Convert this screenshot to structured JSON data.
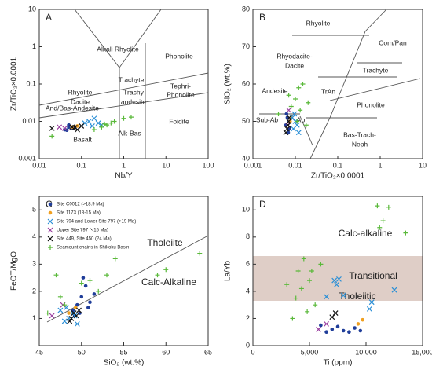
{
  "chart_data": [
    {
      "type": "scatter",
      "panel": "A",
      "xlabel": "Nb/Y",
      "ylabel": "Zr/TiO₂×0.0001",
      "xlog": true,
      "ylog": true,
      "xlim": [
        0.01,
        100
      ],
      "ylim": [
        0.001,
        10
      ],
      "xticks": [
        0.01,
        0.1,
        1,
        10,
        100
      ],
      "yticks": [
        0.001,
        0.01,
        0.1,
        1,
        10
      ],
      "labels": [
        "Alkali Rhyolite",
        "Phonolite",
        "Rhyolite",
        "Dacite",
        "Trachyte",
        "Tephri-",
        "Phonolite",
        "Trachy",
        "andesite",
        "And/Bas-Andesite",
        "Foidite",
        "Alk-Bas",
        "Basalt"
      ],
      "series": [
        {
          "color": "#1f3d99",
          "marker": "circle",
          "x": [
            0.04,
            0.05,
            0.06,
            0.05,
            0.07,
            0.045
          ],
          "y": [
            0.006,
            0.007,
            0.0065,
            0.008,
            0.007,
            0.0058
          ]
        },
        {
          "color": "#f0a020",
          "marker": "circle",
          "x": [
            0.06,
            0.08
          ],
          "y": [
            0.007,
            0.0075
          ]
        },
        {
          "color": "#2b8fd6",
          "marker": "x",
          "x": [
            0.15,
            0.2,
            0.25,
            0.3,
            0.18,
            0.12
          ],
          "y": [
            0.01,
            0.012,
            0.009,
            0.008,
            0.0075,
            0.009
          ]
        },
        {
          "color": "#9b3fa0",
          "marker": "x",
          "x": [
            0.03,
            0.04
          ],
          "y": [
            0.007,
            0.0065
          ]
        },
        {
          "color": "#111111",
          "marker": "x",
          "x": [
            0.02,
            0.06,
            0.08,
            0.1,
            0.07
          ],
          "y": [
            0.0065,
            0.007,
            0.006,
            0.0075,
            0.0068
          ]
        },
        {
          "color": "#5ab93a",
          "marker": "plus",
          "x": [
            0.02,
            0.3,
            0.4,
            0.5,
            0.6,
            1,
            1.5,
            0.2,
            0.35
          ],
          "y": [
            0.004,
            0.007,
            0.008,
            0.009,
            0.01,
            0.012,
            0.013,
            0.006,
            0.0085
          ]
        }
      ]
    },
    {
      "type": "scatter",
      "panel": "B",
      "xlabel": "Zr/TiO₂×0.0001",
      "ylabel": "SiO₂ (wt.%)",
      "xlog": true,
      "xlim": [
        0.001,
        10
      ],
      "ylim": [
        40,
        80
      ],
      "xticks": [
        0.001,
        0.01,
        0.1,
        1,
        10
      ],
      "yticks": [
        40,
        50,
        60,
        70,
        80
      ],
      "labels": [
        "Rhyolite",
        "Com/Pan",
        "Rhyodacite-",
        "Dacite",
        "Trachyte",
        "Andesite",
        "TrAn",
        "Phonolite",
        "Sub-Ab",
        "Ab",
        "Bas-Trach-",
        "Neph"
      ],
      "series": [
        {
          "color": "#1f3d99",
          "marker": "circle",
          "x": [
            0.006,
            0.007,
            0.0065,
            0.0072,
            0.0068,
            0.0062
          ],
          "y": [
            49,
            50,
            51,
            48,
            47,
            52
          ]
        },
        {
          "color": "#f0a020",
          "marker": "circle",
          "x": [
            0.0075,
            0.008
          ],
          "y": [
            50,
            51
          ]
        },
        {
          "color": "#2b8fd6",
          "marker": "x",
          "x": [
            0.009,
            0.011,
            0.01,
            0.012,
            0.0085,
            0.0095
          ],
          "y": [
            48,
            49,
            50,
            47,
            51,
            52
          ]
        },
        {
          "color": "#9b3fa0",
          "marker": "x",
          "x": [
            0.007,
            0.0066
          ],
          "y": [
            53,
            49
          ]
        },
        {
          "color": "#111111",
          "marker": "x",
          "x": [
            0.006,
            0.0064,
            0.0068,
            0.007,
            0.0072
          ],
          "y": [
            47,
            48,
            49,
            50,
            51
          ]
        },
        {
          "color": "#5ab93a",
          "marker": "plus",
          "x": [
            0.004,
            0.01,
            0.012,
            0.015,
            0.02,
            0.008,
            0.011,
            0.018,
            0.007,
            0.013
          ],
          "y": [
            52,
            56,
            59,
            60,
            55,
            54,
            50,
            49,
            57,
            53
          ]
        }
      ]
    },
    {
      "type": "scatter",
      "panel": "C",
      "xlabel": "SiO₂ (wt.%)",
      "ylabel": "FeOT/MgO",
      "xlim": [
        45,
        65
      ],
      "ylim": [
        0,
        5.5
      ],
      "xticks": [
        45,
        50,
        55,
        60,
        65
      ],
      "yticks": [
        1,
        2,
        3,
        4,
        5
      ],
      "labels": [
        "Tholeiite",
        "Calc-Alkaline"
      ],
      "legend": "upper left",
      "series": [
        {
          "name": "Site C0012 (>18.9 Ma)",
          "color": "#1f3d99",
          "marker": "circle",
          "x": [
            49,
            49.5,
            50,
            50.5,
            51,
            49.8,
            50.2,
            51.5,
            50.8,
            49.2
          ],
          "y": [
            1.3,
            1.5,
            1.8,
            2.2,
            1.6,
            1.2,
            2.5,
            1.9,
            1.4,
            1.1
          ]
        },
        {
          "name": "Site 1173 (13-15 Ma)",
          "color": "#f0a020",
          "marker": "circle",
          "x": [
            48.5,
            49.3
          ],
          "y": [
            1.2,
            1.4
          ]
        },
        {
          "name": "Site 794 and Lower Site 797 (>19 Ma)",
          "color": "#2b8fd6",
          "marker": "x",
          "x": [
            48,
            48.5,
            49,
            49.5,
            48.2,
            49.2,
            47.5
          ],
          "y": [
            0.9,
            1.0,
            1.2,
            0.8,
            1.4,
            1.1,
            1.3
          ]
        },
        {
          "name": "Upper Site 797 (<15 Ma)",
          "color": "#9b3fa0",
          "marker": "x",
          "x": [
            46.5,
            47.8
          ],
          "y": [
            1.1,
            1.5
          ]
        },
        {
          "name": "Site 449, Site 450 (24 Ma)",
          "color": "#111111",
          "marker": "x",
          "x": [
            48.8,
            49.1,
            49.4,
            48.6,
            49.7
          ],
          "y": [
            1.0,
            1.2,
            1.1,
            0.9,
            1.3
          ]
        },
        {
          "name": "Seamount chains in Shikoku Basin",
          "color": "#5ab93a",
          "marker": "plus",
          "x": [
            46,
            47,
            47.5,
            48,
            50,
            51,
            52,
            53,
            54,
            59,
            60,
            64
          ],
          "y": [
            1.2,
            2.6,
            1.8,
            1.5,
            2.3,
            2.4,
            2.0,
            2.6,
            3.2,
            2.6,
            2.8,
            3.4
          ]
        }
      ]
    },
    {
      "type": "scatter",
      "panel": "D",
      "xlabel": "Ti (ppm)",
      "ylabel": "La/Yb",
      "xlim": [
        0,
        15000
      ],
      "ylim": [
        0,
        11
      ],
      "xticks": [
        0,
        {
          "value": 5000,
          "label": "5,000"
        },
        {
          "value": 10000,
          "label": "10,000"
        },
        {
          "value": 15000,
          "label": "15,000"
        }
      ],
      "yticks": [
        0,
        2,
        4,
        6,
        8,
        10
      ],
      "shaded_range": [
        3.3,
        6.6
      ],
      "labels": [
        "Calc-alkaline",
        "Transitional",
        "Tholeiitic"
      ],
      "series": [
        {
          "color": "#1f3d99",
          "marker": "circle",
          "x": [
            6500,
            7000,
            7500,
            8000,
            8500,
            9000,
            9500,
            6000
          ],
          "y": [
            1.0,
            1.2,
            1.4,
            1.1,
            1.0,
            1.3,
            1.1,
            1.5
          ]
        },
        {
          "color": "#f0a020",
          "marker": "circle",
          "x": [
            9300,
            9700
          ],
          "y": [
            1.6,
            1.9
          ]
        },
        {
          "color": "#2b8fd6",
          "marker": "x",
          "x": [
            7200,
            7400,
            7600,
            6500,
            10300,
            10500,
            12500,
            8000
          ],
          "y": [
            4.8,
            4.5,
            4.9,
            3.6,
            2.7,
            3.2,
            4.1,
            3.7
          ]
        },
        {
          "color": "#9b3fa0",
          "marker": "x",
          "x": [
            5800,
            6500
          ],
          "y": [
            1.2,
            1.6
          ]
        },
        {
          "color": "#111111",
          "marker": "x",
          "x": [
            7000,
            7300
          ],
          "y": [
            2.1,
            2.4
          ]
        },
        {
          "color": "#5ab93a",
          "marker": "plus",
          "x": [
            3000,
            3500,
            4000,
            4500,
            5000,
            5500,
            6000,
            3800,
            4800,
            11000,
            11500,
            12000,
            13500,
            11200,
            5200,
            4300
          ],
          "y": [
            4.5,
            2.0,
            5.5,
            6.4,
            4.8,
            3.0,
            6.0,
            3.5,
            2.5,
            10.3,
            9.2,
            10.2,
            8.3,
            8.7,
            5.5,
            4.2
          ]
        }
      ]
    }
  ]
}
